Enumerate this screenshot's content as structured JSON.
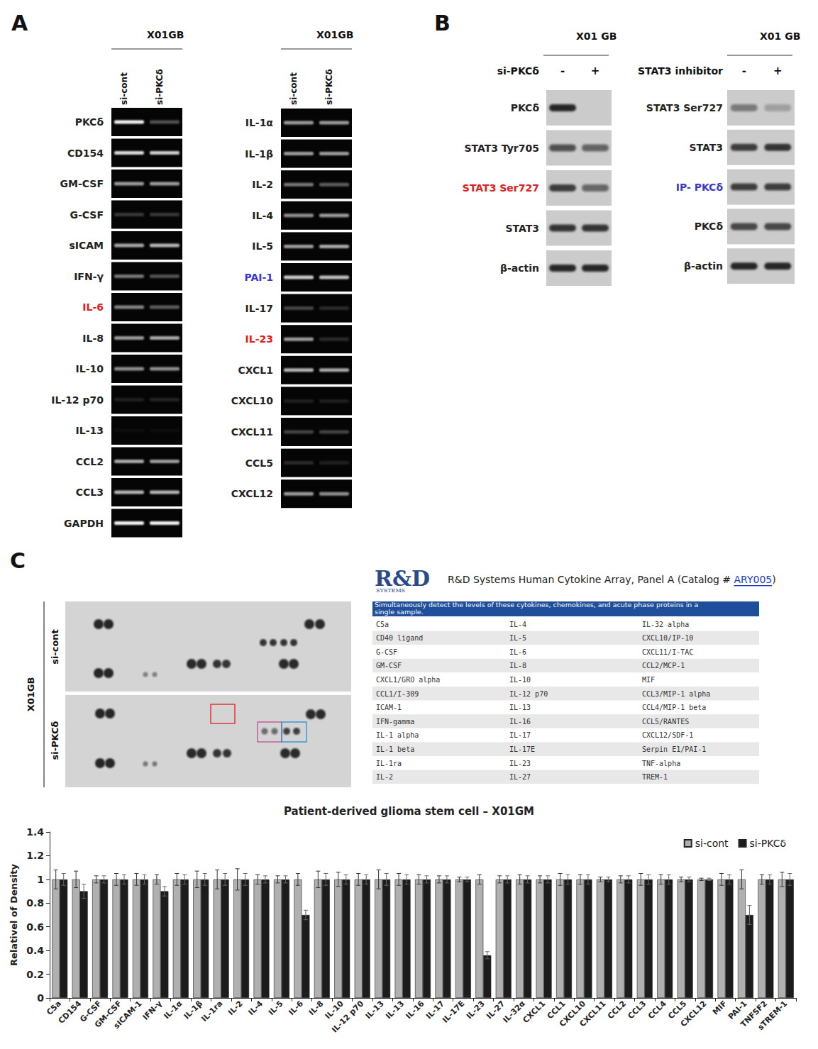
{
  "panel_a": {
    "letter": "A",
    "columns": [
      {
        "header": "X01GB",
        "lanes": [
          "si-cont",
          "si-PKCδ"
        ],
        "rows": [
          {
            "label": "PKCδ",
            "intensity": [
              0.95,
              0.3
            ]
          },
          {
            "label": "CD154",
            "intensity": [
              0.85,
              0.8
            ]
          },
          {
            "label": "GM-CSF",
            "intensity": [
              0.6,
              0.6
            ]
          },
          {
            "label": "G-CSF",
            "intensity": [
              0.2,
              0.2
            ]
          },
          {
            "label": "sICAM",
            "intensity": [
              0.65,
              0.7
            ]
          },
          {
            "label": "IFN-γ",
            "intensity": [
              0.45,
              0.3
            ]
          },
          {
            "label": "IL-6",
            "color": "#e02020",
            "intensity": [
              0.5,
              0.35
            ]
          },
          {
            "label": "IL-8",
            "intensity": [
              0.6,
              0.65
            ]
          },
          {
            "label": "IL-10",
            "intensity": [
              0.55,
              0.55
            ]
          },
          {
            "label": "IL-12 p70",
            "intensity": [
              0.1,
              0.12
            ]
          },
          {
            "label": "IL-13",
            "intensity": [
              0.03,
              0.03
            ]
          },
          {
            "label": "CCL2",
            "intensity": [
              0.65,
              0.6
            ]
          },
          {
            "label": "CCL3",
            "intensity": [
              0.7,
              0.7
            ]
          },
          {
            "label": "GAPDH",
            "intensity": [
              0.95,
              0.95
            ]
          }
        ]
      },
      {
        "header": "X01GB",
        "lanes": [
          "si-cont",
          "si-PKCδ"
        ],
        "rows": [
          {
            "label": "IL-1α",
            "intensity": [
              0.6,
              0.6
            ]
          },
          {
            "label": "IL-1β",
            "intensity": [
              0.6,
              0.6
            ]
          },
          {
            "label": "IL-2",
            "intensity": [
              0.45,
              0.35
            ]
          },
          {
            "label": "IL-4",
            "intensity": [
              0.55,
              0.6
            ]
          },
          {
            "label": "IL-5",
            "intensity": [
              0.6,
              0.65
            ]
          },
          {
            "label": "PAI-1",
            "color": "#3a3ad0",
            "intensity": [
              0.8,
              0.75
            ]
          },
          {
            "label": "IL-17",
            "intensity": [
              0.25,
              0.15
            ]
          },
          {
            "label": "IL-23",
            "color": "#e02020",
            "intensity": [
              0.6,
              0.15
            ]
          },
          {
            "label": "CXCL1",
            "intensity": [
              0.7,
              0.65
            ]
          },
          {
            "label": "CXCL10",
            "intensity": [
              0.1,
              0.1
            ]
          },
          {
            "label": "CXCL11",
            "intensity": [
              0.25,
              0.25
            ]
          },
          {
            "label": "CCL5",
            "intensity": [
              0.15,
              0.1
            ]
          },
          {
            "label": "CXCL12",
            "intensity": [
              0.6,
              0.55
            ]
          }
        ]
      }
    ]
  },
  "panel_b": {
    "letter": "B",
    "blots": [
      {
        "header": "X01 GB",
        "treatment": "si-PKCδ",
        "lanes": [
          "-",
          "+"
        ],
        "rows": [
          {
            "label": "PKCδ",
            "intensity": [
              0.95,
              0.0
            ]
          },
          {
            "label": "STAT3 Tyr705",
            "intensity": [
              0.7,
              0.6
            ]
          },
          {
            "label": "STAT3 Ser727",
            "color": "#e02020",
            "intensity": [
              0.8,
              0.55
            ]
          },
          {
            "label": "STAT3",
            "intensity": [
              0.85,
              0.85
            ]
          },
          {
            "label": "β-actin",
            "intensity": [
              0.95,
              0.95
            ]
          }
        ]
      },
      {
        "header": "X01 GB",
        "treatment": "STAT3 inhibitor",
        "lanes": [
          "-",
          "+"
        ],
        "rows": [
          {
            "label": "STAT3 Ser727",
            "intensity": [
              0.45,
              0.25
            ]
          },
          {
            "label": "STAT3",
            "intensity": [
              0.8,
              0.85
            ]
          },
          {
            "label": "IP- PKCδ",
            "color": "#3a3ad0",
            "intensity": [
              0.8,
              0.8
            ]
          },
          {
            "label": "PKCδ",
            "intensity": [
              0.75,
              0.75
            ]
          },
          {
            "label": "β-actin",
            "intensity": [
              0.95,
              0.95
            ]
          }
        ]
      }
    ]
  },
  "panel_c": {
    "letter": "C",
    "array": {
      "sample": "X01GB",
      "conditions": [
        "si-cont",
        "si-PKCδ"
      ]
    },
    "vendor": {
      "logo": "R&D",
      "logo_sub": "SYSTEMS",
      "title": "R&D Systems  Human Cytokine Array, Panel A (Catalog #",
      "catalog": "ARY005",
      "title_end": ")"
    },
    "table": {
      "header": "Simultaneously detect the levels of these cytokines, chemokines, and acute phase proteins in a single sample.",
      "rows": [
        [
          "C5a",
          "IL-4",
          "IL-32 alpha"
        ],
        [
          "CD40 ligand",
          "IL-5",
          "CXCL10/IP-10"
        ],
        [
          "G-CSF",
          "IL-6",
          "CXCL11/I-TAC"
        ],
        [
          "GM-CSF",
          "IL-8",
          "CCL2/MCP-1"
        ],
        [
          "CXCL1/GRO alpha",
          "IL-10",
          "MIF"
        ],
        [
          "CCL1/I-309",
          "IL-12 p70",
          "CCL3/MIP-1 alpha"
        ],
        [
          "ICAM-1",
          "IL-13",
          "CCL4/MIP-1 beta"
        ],
        [
          "IFN-gamma",
          "IL-16",
          "CCL5/RANTES"
        ],
        [
          "IL-1 alpha",
          "IL-17",
          "CXCL12/SDF-1"
        ],
        [
          "IL-1 beta",
          "IL-17E",
          "Serpin E1/PAI-1"
        ],
        [
          "IL-1ra",
          "IL-23",
          "TNF-alpha"
        ],
        [
          "IL-2",
          "IL-27",
          "TREM-1"
        ]
      ]
    }
  },
  "chart_data": {
    "type": "bar",
    "title": "Patient-derived glioma stem cell – X01GM",
    "y_label": "Relativel of Density",
    "categories": [
      "C5a",
      "CD154",
      "G-CSF",
      "GM-CSF",
      "sICAM-1",
      "IFN-γ",
      "IL-1α",
      "IL-1β",
      "IL-1ra",
      "IL-2",
      "IL-4",
      "IL-5",
      "IL-6",
      "IL-8",
      "IL-10",
      "IL-12 p70",
      "IL-13",
      "IL-13",
      "IL-16",
      "IL-17",
      "IL-17E",
      "IL-23",
      "IL-27",
      "IL-32α",
      "CXCL1",
      "CCL1",
      "CXCL10",
      "CXCL11",
      "CCL2",
      "CCL3",
      "CCL4",
      "CCL5",
      "CXCL12",
      "MIF",
      "PAI-1",
      "TNFSF2",
      "sTREM-1"
    ],
    "series": [
      {
        "name": "si-cont",
        "color": "#b0b0b0",
        "values": [
          1,
          1,
          1,
          1,
          1,
          1,
          1,
          1,
          1,
          1,
          1,
          1,
          1,
          1,
          1,
          1,
          1,
          1,
          1,
          1,
          1,
          1,
          1,
          1,
          1,
          1,
          1,
          1,
          1,
          1,
          1,
          1,
          1,
          1,
          1,
          1,
          1
        ],
        "errors": [
          0.08,
          0.07,
          0.03,
          0.05,
          0.05,
          0.04,
          0.05,
          0.07,
          0.08,
          0.09,
          0.04,
          0.03,
          0.05,
          0.07,
          0.06,
          0.05,
          0.08,
          0.05,
          0.04,
          0.03,
          0.02,
          0.04,
          0.03,
          0.04,
          0.03,
          0.05,
          0.04,
          0.02,
          0.03,
          0.05,
          0.04,
          0.02,
          0.01,
          0.05,
          0.08,
          0.04,
          0.06
        ]
      },
      {
        "name": "si-PKCδ",
        "color": "#1c1c1c",
        "values": [
          1,
          0.9,
          1,
          1,
          1,
          0.9,
          1,
          1,
          1,
          1,
          1,
          1,
          0.7,
          1,
          1,
          1,
          1,
          1,
          1,
          1,
          1,
          0.36,
          1,
          1,
          1,
          1,
          1,
          1,
          1,
          1,
          1,
          1,
          1,
          1,
          0.7,
          1,
          1
        ],
        "errors": [
          0.05,
          0.06,
          0.03,
          0.04,
          0.04,
          0.04,
          0.04,
          0.05,
          0.05,
          0.05,
          0.03,
          0.03,
          0.04,
          0.05,
          0.04,
          0.04,
          0.05,
          0.04,
          0.03,
          0.03,
          0.02,
          0.03,
          0.03,
          0.03,
          0.03,
          0.04,
          0.04,
          0.02,
          0.03,
          0.04,
          0.04,
          0.02,
          0.01,
          0.04,
          0.08,
          0.04,
          0.05
        ]
      }
    ],
    "ylim": [
      0,
      1.4
    ],
    "yticks": [
      0,
      0.2,
      0.4,
      0.6,
      0.8,
      1,
      1.2,
      1.4
    ],
    "grid": false,
    "legend": "top-right"
  }
}
